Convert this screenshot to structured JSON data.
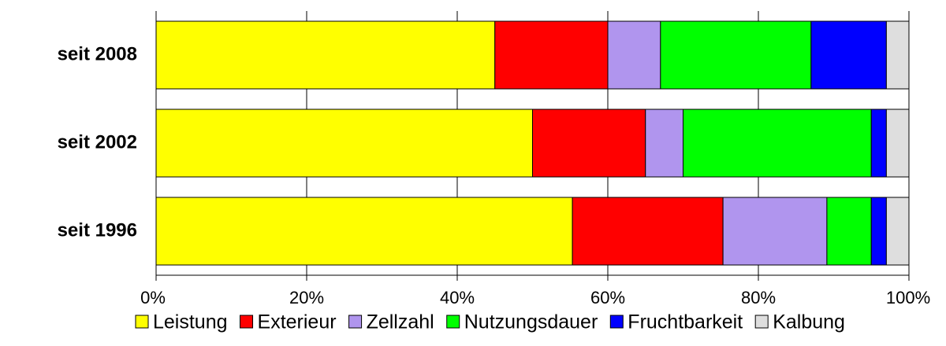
{
  "chart_data": {
    "type": "bar",
    "orientation": "horizontal",
    "stacked": true,
    "categories": [
      "seit 2008",
      "seit 2002",
      "seit 1996"
    ],
    "xlim": [
      0,
      100
    ],
    "xticks": [
      "0%",
      "20%",
      "40%",
      "60%",
      "80%",
      "100%"
    ],
    "grid": "vertical",
    "legend_position": "bottom",
    "series": [
      {
        "name": "Leistung",
        "color": "#ffff00",
        "values": [
          45.0,
          50.0,
          55.3
        ]
      },
      {
        "name": "Exterieur",
        "color": "#ff0000",
        "values": [
          15.0,
          15.0,
          20.0
        ]
      },
      {
        "name": "Zellzahl",
        "color": "#b095ee",
        "values": [
          7.0,
          5.0,
          13.8
        ]
      },
      {
        "name": "Nutzungsdauer",
        "color": "#00ff00",
        "values": [
          20.0,
          25.0,
          5.9
        ]
      },
      {
        "name": "Fruchtbarkeit",
        "color": "#0000ff",
        "values": [
          10.0,
          2.0,
          2.0
        ]
      },
      {
        "name": "Kalbung",
        "color": "#dedede",
        "values": [
          3.0,
          3.0,
          3.0
        ]
      }
    ]
  }
}
